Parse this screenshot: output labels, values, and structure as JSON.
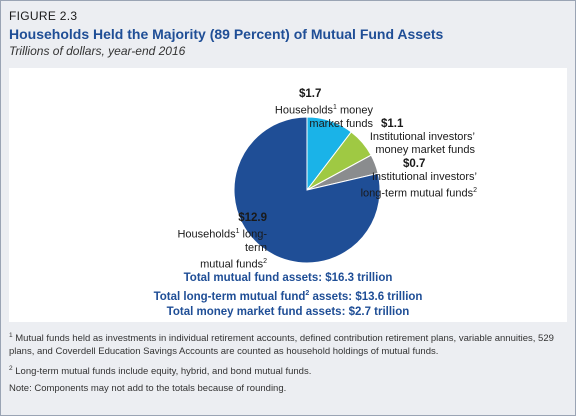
{
  "figure": {
    "label": "FIGURE 2.3",
    "title": "Households Held the Majority (89 Percent) of Mutual Fund Assets",
    "subtitle": "Trillions of dollars, year-end 2016"
  },
  "chart_data": {
    "type": "pie",
    "title": "Households Held the Majority (89 Percent) of Mutual Fund Assets",
    "subtitle": "Trillions of dollars, year-end 2016",
    "slices": [
      {
        "value": 12.9,
        "value_label": "$12.9",
        "label_line1": "Households",
        "label_sup": "1",
        "label_line1_rest": " long-term",
        "label_line2": "mutual funds",
        "label_line2_sup": "2",
        "color": "#1f4e96"
      },
      {
        "value": 1.7,
        "value_label": "$1.7",
        "label_line1": "Households",
        "label_sup": "1",
        "label_line1_rest": " money",
        "label_line2": "market funds",
        "label_line2_sup": "",
        "color": "#1ab3e8"
      },
      {
        "value": 1.1,
        "value_label": "$1.1",
        "label_line1": "Institutional investors’",
        "label_sup": "",
        "label_line1_rest": "",
        "label_line2": "money market funds",
        "label_line2_sup": "",
        "color": "#9fc943"
      },
      {
        "value": 0.7,
        "value_label": "$0.7",
        "label_line1": "Institutional investors’",
        "label_sup": "",
        "label_line1_rest": "",
        "label_line2": "long-term mutual funds",
        "label_line2_sup": "2",
        "color": "#8a8c8e"
      }
    ]
  },
  "totals": {
    "line1": "Total mutual fund assets: $16.3 trillion",
    "line2_a": "Total long-term mutual fund",
    "line2_sup": "2",
    "line2_b": " assets: $13.6 trillion",
    "line3": "Total money market fund assets: $2.7 trillion"
  },
  "notes": {
    "n1_sup": "1",
    "n1": " Mutual funds held as investments in individual retirement accounts, defined contribution retirement plans, variable annuities, 529 plans, and Coverdell Education Savings Accounts are counted as household holdings of mutual funds.",
    "n2_sup": "2",
    "n2": " Long-term mutual funds include equity, hybrid, and bond mutual funds.",
    "n3": "Note: Components may not add to the totals because of rounding."
  }
}
